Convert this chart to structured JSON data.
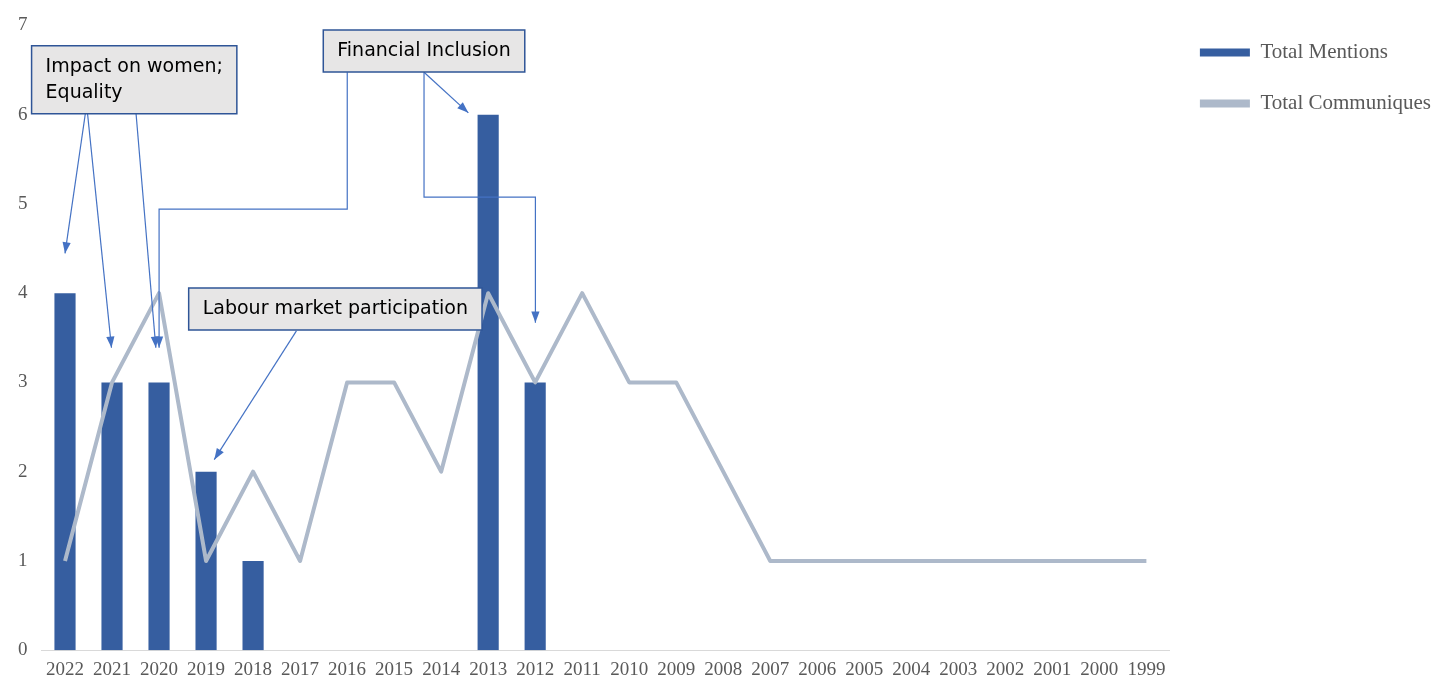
{
  "chart_data": {
    "type": "bar",
    "categories": [
      "2022",
      "2021",
      "2020",
      "2019",
      "2018",
      "2017",
      "2016",
      "2015",
      "2014",
      "2013",
      "2012",
      "2011",
      "2010",
      "2009",
      "2008",
      "2007",
      "2006",
      "2005",
      "2004",
      "2003",
      "2002",
      "2001",
      "2000",
      "1999"
    ],
    "series": [
      {
        "name": "Total Mentions",
        "color": "#365ea0",
        "values": [
          4,
          3,
          3,
          2,
          1,
          null,
          null,
          null,
          null,
          6,
          3,
          null,
          null,
          null,
          null,
          null,
          null,
          null,
          null,
          null,
          null,
          null,
          null,
          null
        ]
      },
      {
        "name": "Total Communiques",
        "type": "line",
        "color": "#adb9ca",
        "values": [
          1,
          3,
          4,
          1,
          2,
          1,
          3,
          3,
          2,
          4,
          3,
          4,
          3,
          3,
          2,
          1,
          1,
          1,
          1,
          1,
          1,
          1,
          1,
          1
        ]
      }
    ],
    "ylim": [
      0,
      7
    ],
    "yticks": [
      0,
      1,
      2,
      3,
      4,
      5,
      6,
      7
    ],
    "grid": false,
    "legend": "top right",
    "marker": "none",
    "annotations": [
      "Impact on women; Equality",
      "Financial Inclusion",
      "Labour market participation"
    ]
  }
}
